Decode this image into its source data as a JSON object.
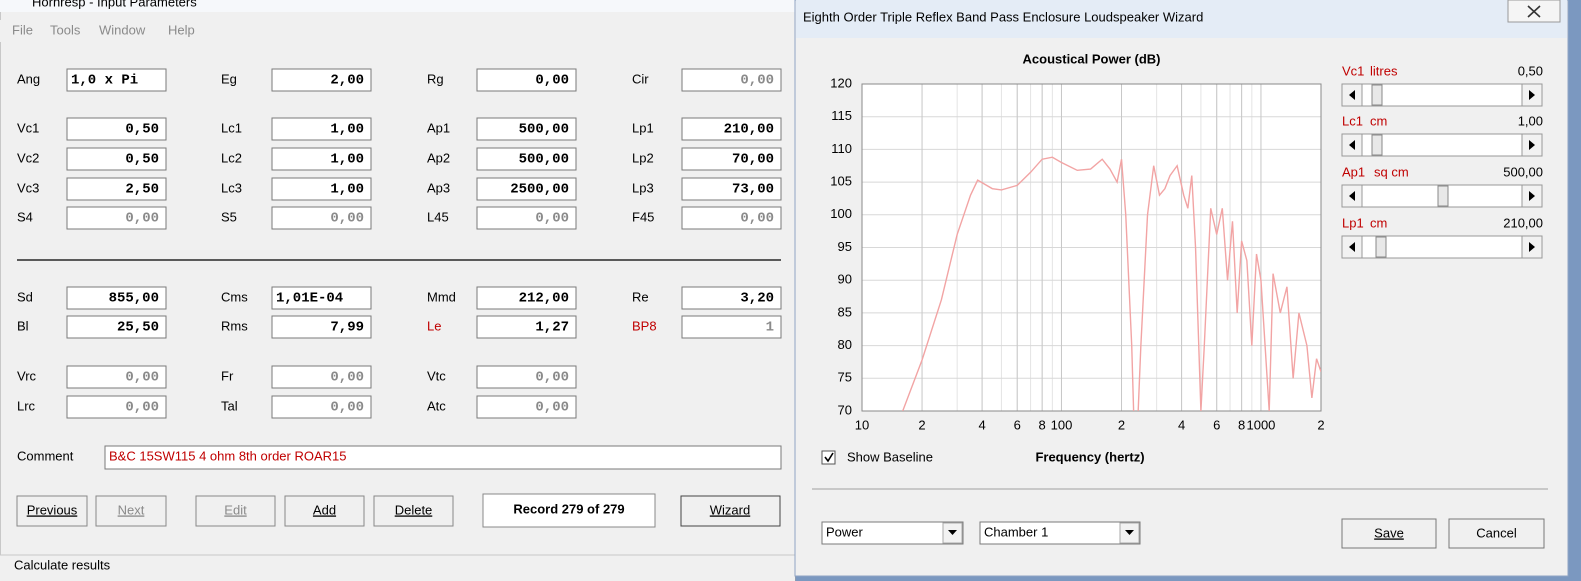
{
  "input_window": {
    "title": "Hornresp - Input Parameters",
    "menu": [
      "File",
      "Tools",
      "Window",
      "Help"
    ],
    "rows": [
      [
        [
          "Ang",
          "1,0 x Pi"
        ],
        [
          "Eg",
          "2,00"
        ],
        [
          "Rg",
          "0,00"
        ],
        [
          "Cir",
          "0,00"
        ]
      ],
      [
        [
          "Vc1",
          "0,50"
        ],
        [
          "Lc1",
          "1,00"
        ],
        [
          "Ap1",
          "500,00"
        ],
        [
          "Lp1",
          "210,00"
        ]
      ],
      [
        [
          "Vc2",
          "0,50"
        ],
        [
          "Lc2",
          "1,00"
        ],
        [
          "Ap2",
          "500,00"
        ],
        [
          "Lp2",
          "70,00"
        ]
      ],
      [
        [
          "Vc3",
          "2,50"
        ],
        [
          "Lc3",
          "1,00"
        ],
        [
          "Ap3",
          "2500,00"
        ],
        [
          "Lp3",
          "73,00"
        ]
      ],
      [
        [
          "S4",
          "0,00"
        ],
        [
          "S5",
          "0,00"
        ],
        [
          "L45",
          "0,00"
        ],
        [
          "F45",
          "0,00"
        ]
      ],
      [
        [
          "Sd",
          "855,00"
        ],
        [
          "Cms",
          "1,01E-04"
        ],
        [
          "Mmd",
          "212,00"
        ],
        [
          "Re",
          "3,20"
        ]
      ],
      [
        [
          "Bl",
          "25,50"
        ],
        [
          "Rms",
          "7,99"
        ],
        [
          "Le",
          "1,27"
        ],
        [
          "BP8",
          "1"
        ]
      ],
      [
        [
          "Vrc",
          "0,00"
        ],
        [
          "Fr",
          "0,00"
        ],
        [
          "Vtc",
          "0,00"
        ]
      ],
      [
        [
          "Lrc",
          "0,00"
        ],
        [
          "Tal",
          "0,00"
        ],
        [
          "Atc",
          "0,00"
        ]
      ]
    ],
    "comment_label": "Comment",
    "comment": "B&C 15SW115 4 ohm  8th order ROAR15",
    "buttons": [
      "Previous",
      "Next",
      "Edit",
      "Add",
      "Delete"
    ],
    "record": "Record 279 of 279",
    "wizard_button": "Wizard",
    "status": "Calculate results"
  },
  "chart_data": {
    "type": "line",
    "title": "Acoustical Power (dB)",
    "x_label": "Frequency (hertz)",
    "log_x": true,
    "grid": true,
    "xlim": [
      10,
      2000
    ],
    "ylim": [
      70,
      120
    ],
    "xticks": [
      10,
      {
        "value": 20,
        "label": "2"
      },
      {
        "value": 40,
        "label": "4"
      },
      {
        "value": 60,
        "label": "6"
      },
      {
        "value": 80,
        "label": "8"
      },
      100,
      {
        "value": 200,
        "label": "2"
      },
      {
        "value": 400,
        "label": "4"
      },
      {
        "value": 600,
        "label": "6"
      },
      {
        "value": 800,
        "label": "8"
      },
      1000,
      {
        "value": 2000,
        "label": "2"
      }
    ],
    "yticks": [
      70,
      75,
      80,
      85,
      90,
      95,
      100,
      105,
      110,
      115,
      120
    ],
    "x": [
      16,
      20,
      25,
      30,
      35,
      38,
      45,
      50,
      60,
      70,
      80,
      90,
      100,
      120,
      140,
      160,
      175,
      190,
      200,
      210,
      225,
      235,
      250,
      270,
      290,
      310,
      330,
      350,
      380,
      410,
      430,
      450,
      470,
      500,
      520,
      560,
      600,
      640,
      680,
      720,
      760,
      800,
      850,
      900,
      950,
      1000,
      1100,
      1150,
      1250,
      1350,
      1450,
      1550,
      1700,
      1800,
      1900,
      2000
    ],
    "series": [
      {
        "color": "#f2a4a4",
        "values": [
          70,
          77.8,
          87,
          97,
          103,
          105.3,
          104,
          103.8,
          104.5,
          106.5,
          108.5,
          108.8,
          108,
          106.8,
          107,
          108.5,
          107,
          105,
          108.5,
          100,
          80,
          60,
          80,
          100,
          107.5,
          103,
          104,
          106,
          107.5,
          103,
          101,
          106,
          95,
          70,
          80,
          101,
          97,
          101,
          90,
          99,
          85,
          96,
          93,
          80,
          94,
          90,
          70,
          91,
          85,
          89,
          75,
          85,
          80,
          72,
          78,
          76
        ]
      }
    ]
  },
  "wizard": {
    "title": "Eighth Order Triple Reflex Band Pass Enclosure Loudspeaker Wizard",
    "sliders": [
      {
        "label": "Vc1",
        "unit": "litres",
        "value": "0,50"
      },
      {
        "label": "Lc1",
        "unit": "cm",
        "value": "1,00"
      },
      {
        "label": "Ap1",
        "unit": "sq cm",
        "value": "500,00"
      },
      {
        "label": "Lp1",
        "unit": "cm",
        "value": "210,00"
      }
    ],
    "show_baseline": "Show Baseline",
    "dropdowns": [
      "Power",
      "Chamber 1"
    ],
    "buttons": [
      "Save",
      "Cancel"
    ]
  }
}
